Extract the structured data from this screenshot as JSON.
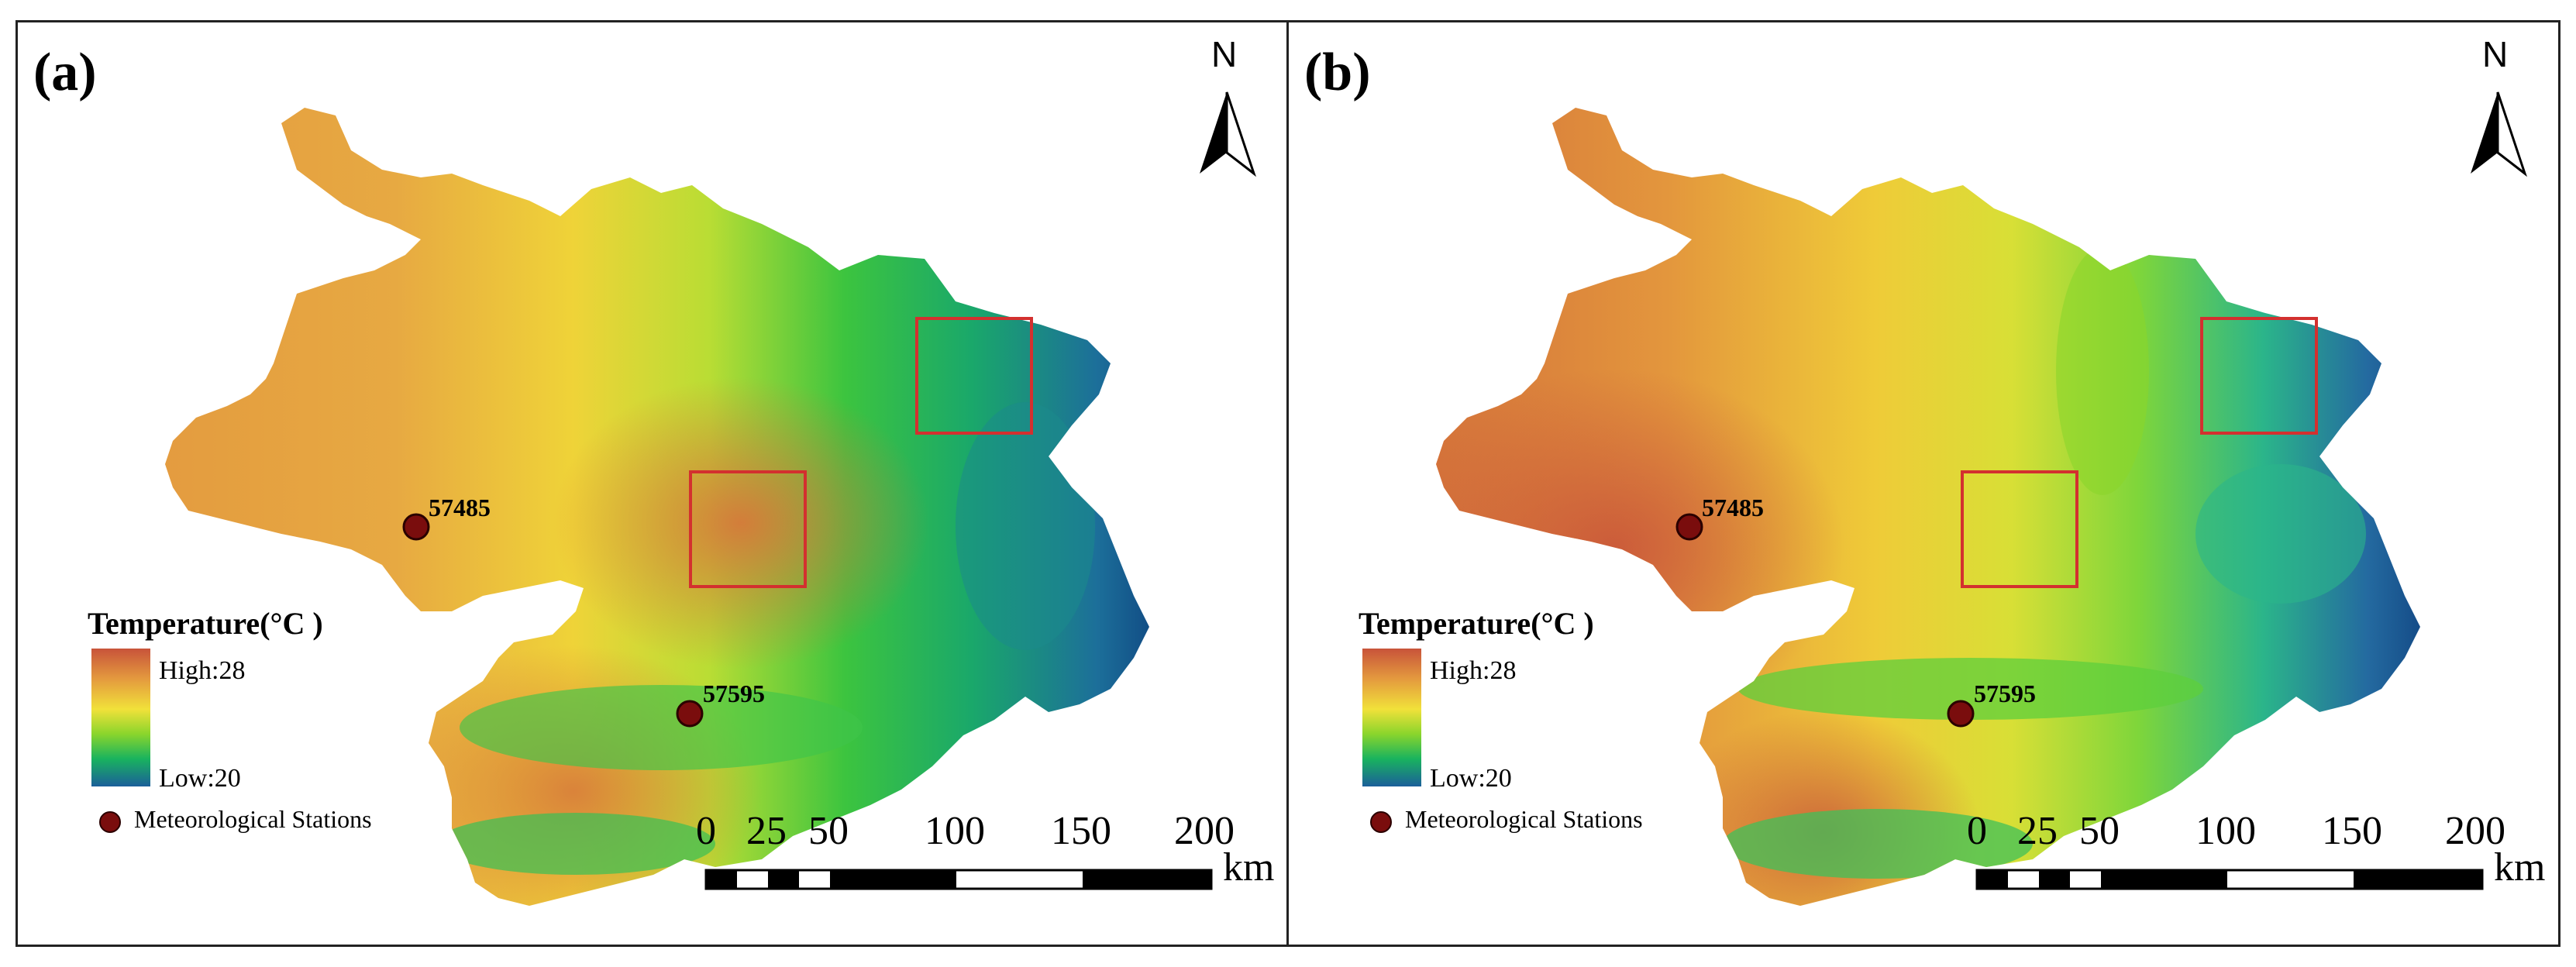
{
  "panels": [
    {
      "id": "a",
      "label": "(a)"
    },
    {
      "id": "b",
      "label": "(b)"
    }
  ],
  "north_arrow": {
    "letter": "N",
    "icon": "north-arrow-icon"
  },
  "legend": {
    "title": "Temperature(°C )",
    "high_label": "High:28",
    "low_label": "Low:20",
    "station_label": "Meteorological Stations",
    "color_ramp": [
      "#c8533a",
      "#e49a3e",
      "#f1e13a",
      "#8ad52c",
      "#19b35e",
      "#1b5f9a"
    ]
  },
  "stations": [
    {
      "id": "57485"
    },
    {
      "id": "57595"
    }
  ],
  "scale_bar": {
    "ticks": [
      "0",
      "25",
      "50",
      "100",
      "150",
      "200"
    ],
    "unit": "km"
  },
  "colors": {
    "station_marker": "#7a0d0d",
    "study_box": "#d3302f",
    "deep_blue": "#0c3b7a"
  }
}
